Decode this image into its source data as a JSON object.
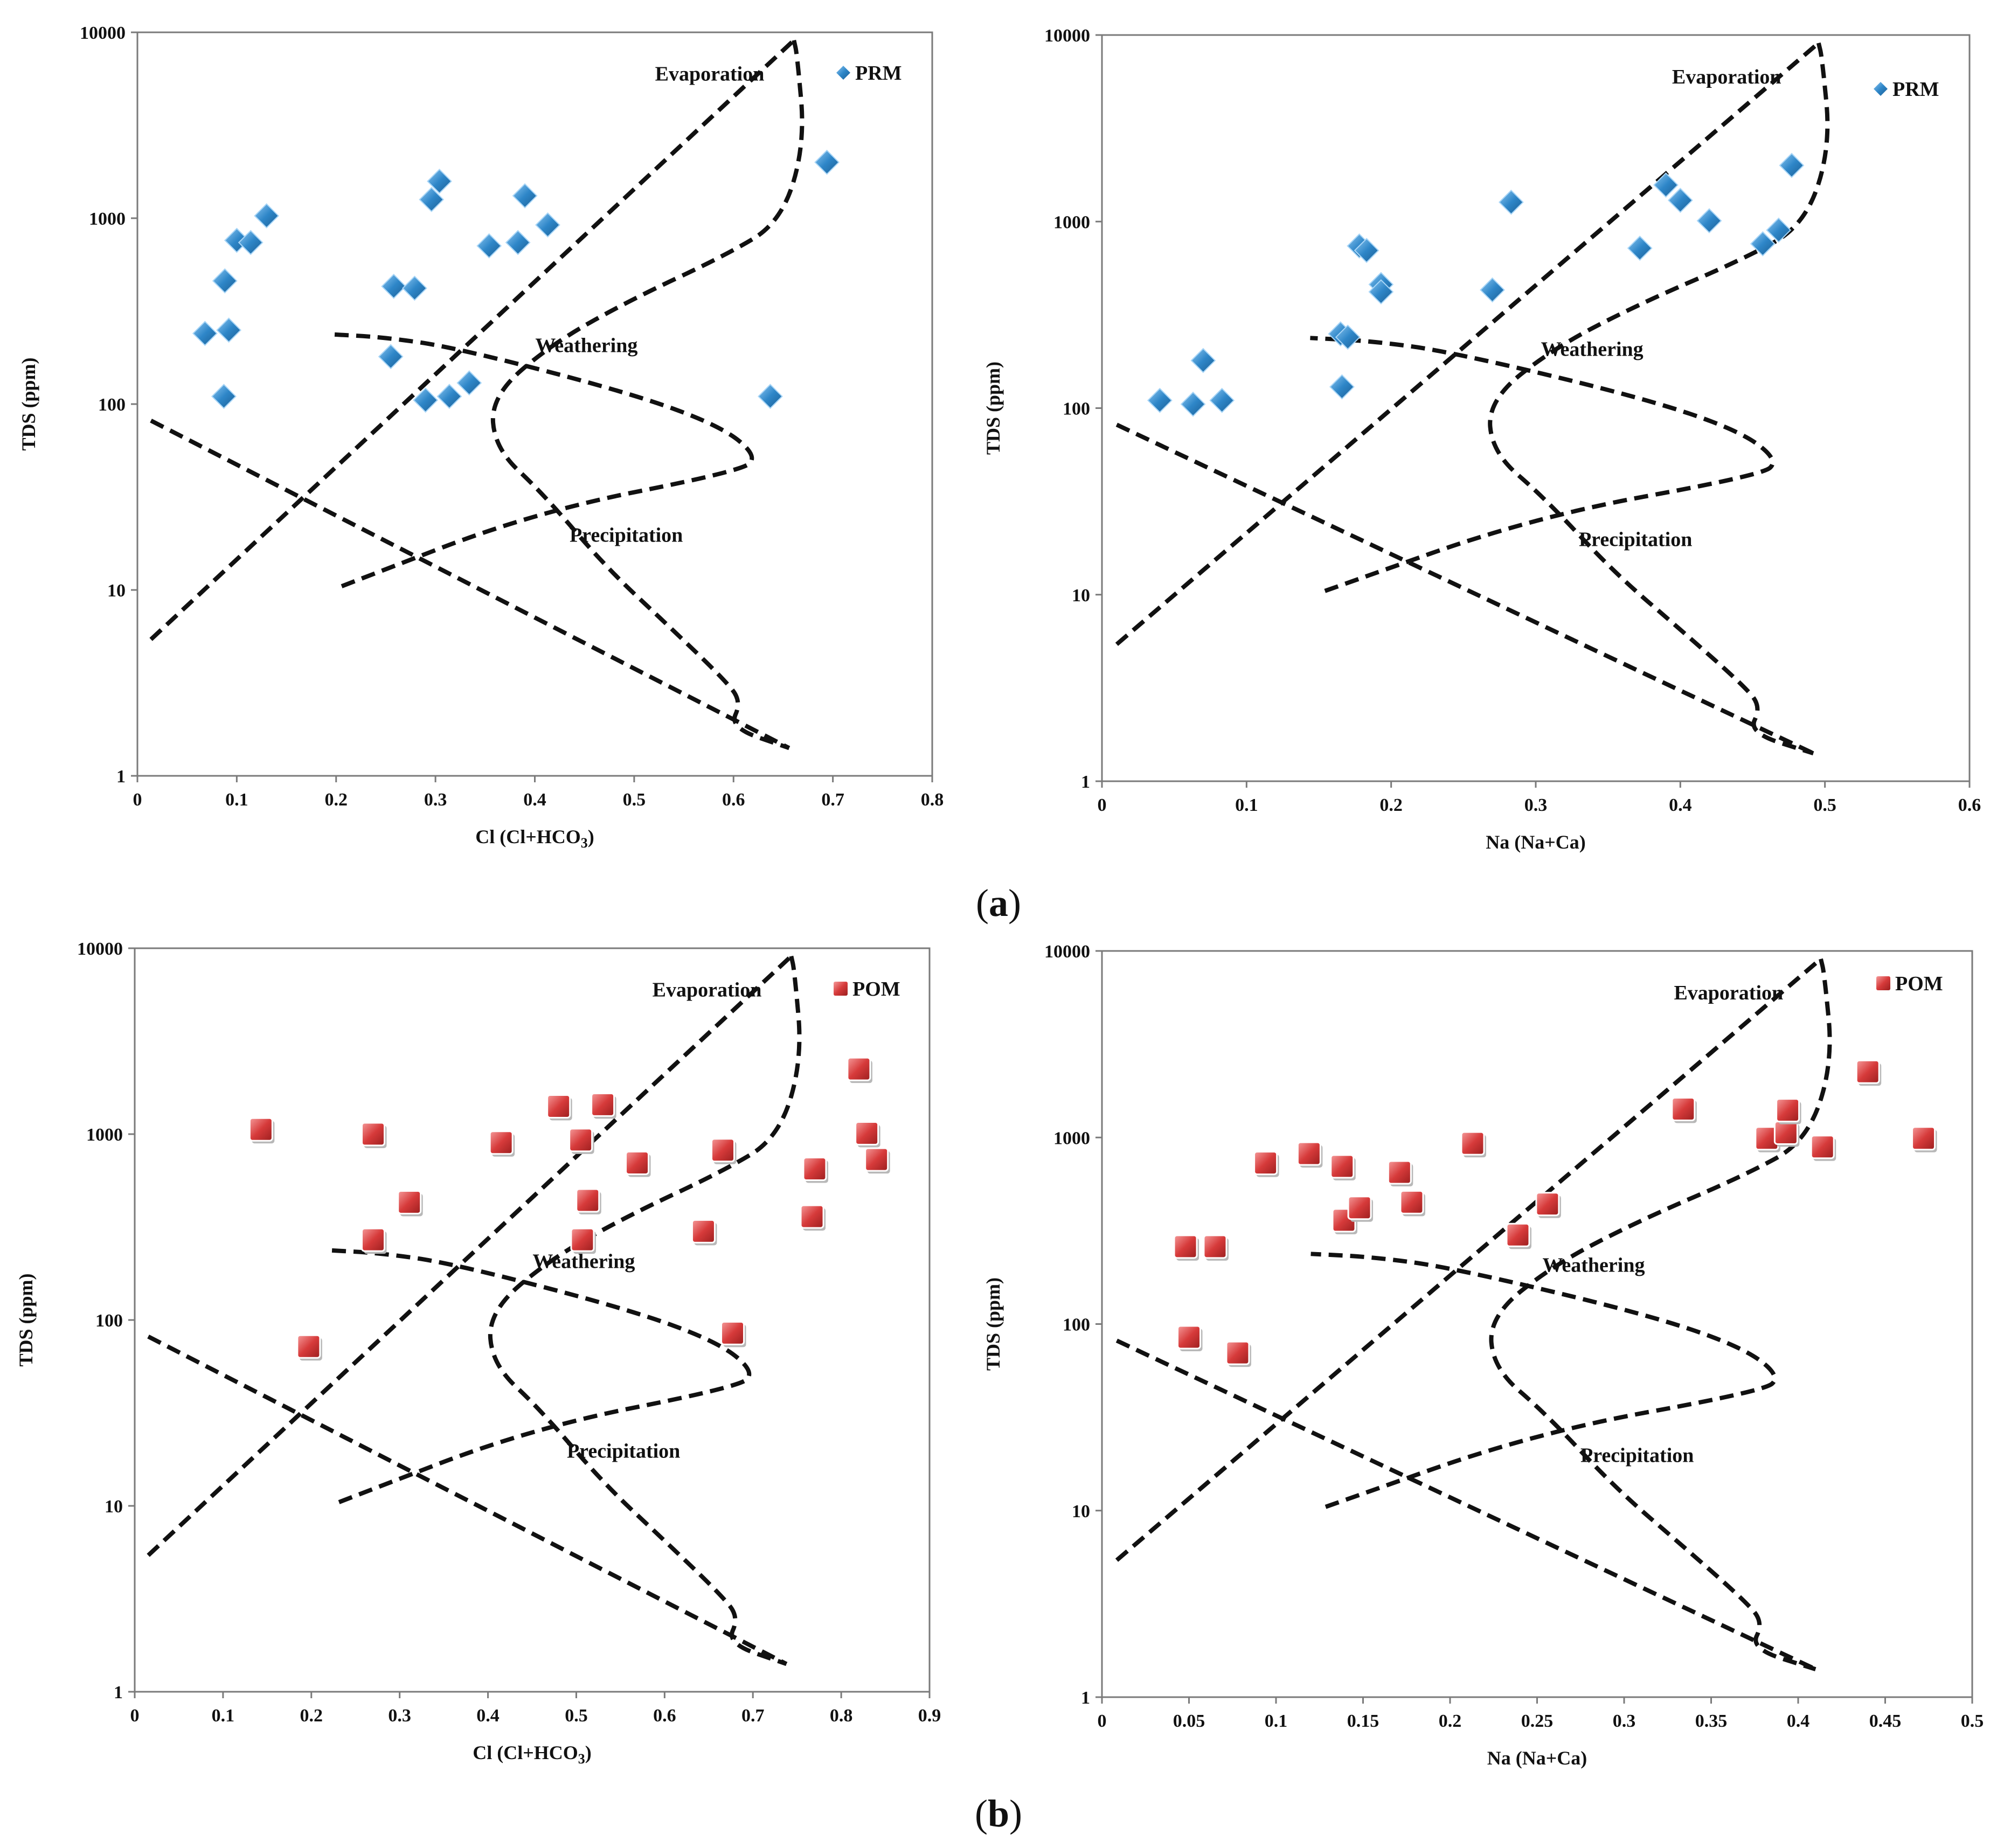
{
  "panel_labels": [
    "a",
    "b"
  ],
  "charts": [
    {
      "xlabel": "Cl (Cl+HCO3)",
      "ylabel": "TDS (ppm)",
      "legend": "PRM",
      "zones": [
        "Evaporation",
        "Weathering",
        "Precipitation"
      ],
      "xticks": [
        "0",
        "0.1",
        "0.2",
        "0.3",
        "0.4",
        "0.5",
        "0.6",
        "0.7",
        "0.8"
      ],
      "yticks": [
        "1",
        "10",
        "100",
        "1000",
        "10000"
      ]
    },
    {
      "xlabel": "Na (Na+Ca)",
      "ylabel": "TDS (ppm)",
      "legend": "PRM",
      "zones": [
        "Evaporation",
        "Weathering",
        "Precipitation"
      ],
      "xticks": [
        "0",
        "0.1",
        "0.2",
        "0.3",
        "0.4",
        "0.5",
        "0.6"
      ],
      "yticks": [
        "1",
        "10",
        "100",
        "1000",
        "10000"
      ]
    },
    {
      "xlabel": "Cl (Cl+HCO3)",
      "ylabel": "TDS (ppm)",
      "legend": "POM",
      "zones": [
        "Evaporation",
        "Weathering",
        "Precipitation"
      ],
      "xticks": [
        "0",
        "0.1",
        "0.2",
        "0.3",
        "0.4",
        "0.5",
        "0.6",
        "0.7",
        "0.8",
        "0.9"
      ],
      "yticks": [
        "1",
        "10",
        "100",
        "1000",
        "10000"
      ]
    },
    {
      "xlabel": "Na (Na+Ca)",
      "ylabel": "TDS (ppm)",
      "legend": "POM",
      "zones": [
        "Evaporation",
        "Weathering",
        "Precipitation"
      ],
      "xticks": [
        "0",
        "0.05",
        "0.1",
        "0.15",
        "0.2",
        "0.25",
        "0.3",
        "0.35",
        "0.4",
        "0.45",
        "0.5"
      ],
      "yticks": [
        "1",
        "10",
        "100",
        "1000",
        "10000"
      ]
    }
  ],
  "chart_data": [
    {
      "type": "scatter",
      "xlabel": "Cl (Cl+HCO3)",
      "ylabel": "TDS (ppm)",
      "xlim": [
        0,
        0.8
      ],
      "ylim": [
        1,
        10000
      ],
      "yscale": "log",
      "legend_position": "top-right",
      "marker": "diamond",
      "color": "#2e86c8",
      "series": [
        {
          "name": "PRM",
          "x": [
            0.068,
            0.092,
            0.088,
            0.087,
            0.1,
            0.114,
            0.13,
            0.255,
            0.258,
            0.279,
            0.29,
            0.296,
            0.304,
            0.314,
            0.334,
            0.354,
            0.383,
            0.39,
            0.413,
            0.637,
            0.694
          ],
          "y": [
            240,
            250,
            460,
            110,
            760,
            740,
            1030,
            180,
            430,
            420,
            105,
            1260,
            1580,
            110,
            130,
            710,
            740,
            1320,
            920,
            110,
            2000
          ]
        }
      ]
    },
    {
      "type": "scatter",
      "xlabel": "Na (Na+Ca)",
      "ylabel": "TDS (ppm)",
      "xlim": [
        0,
        0.6
      ],
      "ylim": [
        1,
        10000
      ],
      "yscale": "log",
      "legend_position": "top-right",
      "marker": "diamond",
      "color": "#2e86c8",
      "series": [
        {
          "name": "PRM",
          "x": [
            0.04,
            0.063,
            0.083,
            0.07,
            0.165,
            0.17,
            0.166,
            0.178,
            0.183,
            0.193,
            0.193,
            0.27,
            0.283,
            0.372,
            0.39,
            0.4,
            0.42,
            0.457,
            0.468,
            0.477
          ],
          "y": [
            110,
            105,
            110,
            180,
            250,
            240,
            130,
            740,
            700,
            460,
            420,
            430,
            1270,
            720,
            1570,
            1300,
            1010,
            760,
            900,
            2000
          ]
        }
      ]
    },
    {
      "type": "scatter",
      "xlabel": "Cl (Cl+HCO3)",
      "ylabel": "TDS (ppm)",
      "xlim": [
        0,
        0.9
      ],
      "ylim": [
        1,
        10000
      ],
      "yscale": "log",
      "legend_position": "top-right",
      "marker": "square",
      "color": "#d63a3a",
      "series": [
        {
          "name": "POM",
          "x": [
            0.143,
            0.197,
            0.27,
            0.27,
            0.311,
            0.415,
            0.48,
            0.505,
            0.507,
            0.513,
            0.53,
            0.569,
            0.644,
            0.666,
            0.677,
            0.767,
            0.77,
            0.82,
            0.829,
            0.84
          ],
          "y": [
            1060,
            72,
            1000,
            270,
            430,
            900,
            1410,
            930,
            270,
            440,
            1440,
            700,
            300,
            820,
            85,
            360,
            650,
            2240,
            1010,
            730
          ]
        }
      ]
    },
    {
      "type": "scatter",
      "xlabel": "Na (Na+Ca)",
      "ylabel": "TDS (ppm)",
      "xlim": [
        0,
        0.5
      ],
      "ylim": [
        1,
        10000
      ],
      "yscale": "log",
      "legend_position": "top-right",
      "marker": "square",
      "color": "#d63a3a",
      "series": [
        {
          "name": "POM",
          "x": [
            0.048,
            0.05,
            0.065,
            0.078,
            0.094,
            0.119,
            0.138,
            0.139,
            0.148,
            0.171,
            0.178,
            0.213,
            0.239,
            0.256,
            0.334,
            0.382,
            0.393,
            0.394,
            0.414,
            0.44,
            0.472
          ],
          "y": [
            260,
            85,
            260,
            70,
            730,
            820,
            700,
            360,
            420,
            650,
            450,
            930,
            300,
            440,
            1420,
            990,
            1060,
            1400,
            890,
            2250,
            990
          ]
        }
      ]
    }
  ]
}
